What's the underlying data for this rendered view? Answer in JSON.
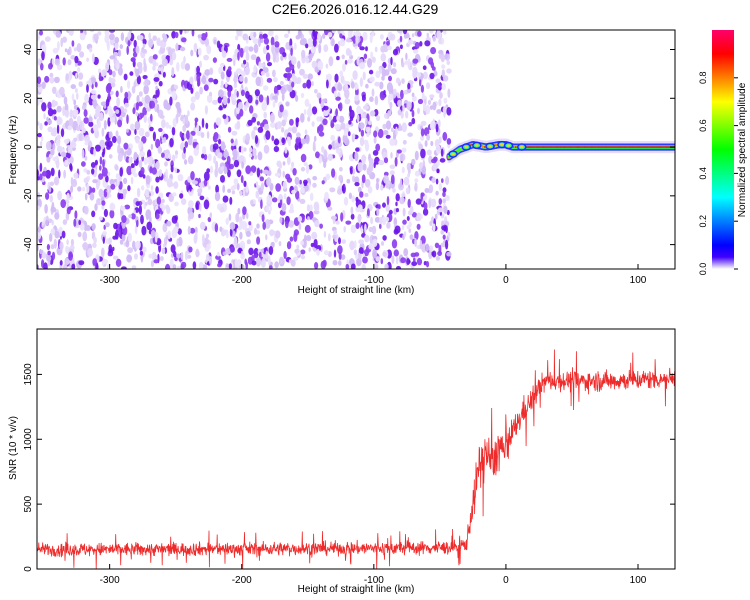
{
  "title": "C2E6.2026.016.12.44.G29",
  "colors": {
    "axis": "#000000",
    "snr_line": "#ee2a2a",
    "noise_low": "#e4d6fa",
    "noise_high": "#6a14e8",
    "background": "#ffffff"
  },
  "chart_data": [
    {
      "type": "heatmap",
      "xlabel": "Height of straight line (km)",
      "ylabel": "Frequency (Hz)",
      "xlim": [
        -355,
        128
      ],
      "ylim": [
        -50,
        48
      ],
      "x_ticks": [
        "-300",
        "-200",
        "-100",
        "0",
        "100"
      ],
      "y_ticks": [
        "-40",
        "-20",
        "0",
        "20",
        "40"
      ],
      "grid": false,
      "noise_region_x": [
        -355,
        -43
      ],
      "signal_track": {
        "x": [
          -43,
          -35,
          -25,
          -15,
          -5,
          0,
          5,
          15,
          40,
          80,
          128
        ],
        "y": [
          -4,
          -1,
          1,
          0,
          1,
          1,
          0,
          0,
          0,
          0,
          0
        ]
      },
      "colorbar": {
        "label": "Normalized spectral amplitude",
        "range": [
          0.0,
          1.0
        ],
        "ticks": [
          "0.0",
          "0.2",
          "0.4",
          "0.6",
          "0.8"
        ],
        "colormap": "rainbow"
      }
    },
    {
      "type": "line",
      "xlabel": "Height of straight line (km)",
      "ylabel": "SNR (10 * v/v)",
      "xlim": [
        -355,
        128
      ],
      "ylim": [
        0,
        1850
      ],
      "x_ticks": [
        "-300",
        "-200",
        "-100",
        "0",
        "100"
      ],
      "y_ticks": [
        "0",
        "500",
        "1000",
        "1500"
      ],
      "grid": false,
      "series": [
        {
          "x": [
            -355,
            -300,
            -200,
            -100,
            -40,
            -30,
            -25,
            -20,
            -15,
            -10,
            -5,
            0,
            5,
            10,
            15,
            20,
            25,
            30,
            50,
            80,
            100,
            128
          ],
          "values": [
            150,
            150,
            155,
            160,
            165,
            190,
            500,
            800,
            900,
            800,
            950,
            900,
            1050,
            1150,
            1250,
            1300,
            1400,
            1450,
            1450,
            1450,
            1460,
            1470
          ],
          "spread": [
            100,
            100,
            100,
            100,
            100,
            120,
            250,
            350,
            350,
            300,
            350,
            250,
            200,
            200,
            200,
            180,
            160,
            150,
            150,
            150,
            150,
            150
          ]
        }
      ]
    }
  ]
}
